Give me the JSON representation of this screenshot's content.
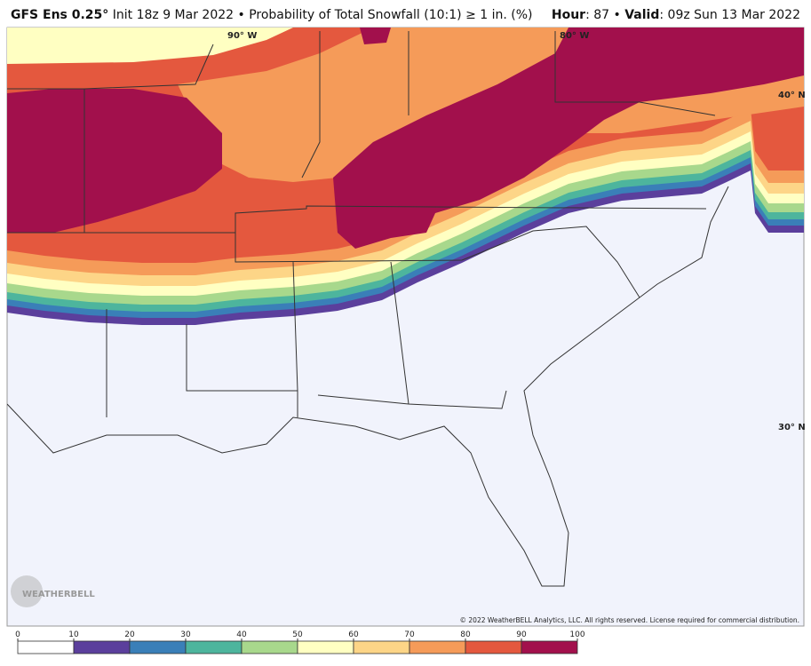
{
  "header": {
    "model": "GFS Ens 0.25°",
    "description": "Init 18z 9 Mar 2022 • Probability of Total Snowfall (10:1) ≥ 1 in. (%)",
    "hour_label": "Hour",
    "hour": ": 87",
    "separator": "•",
    "valid_label": "Valid",
    "valid": ": 09z Sun 13 Mar 2022"
  },
  "map": {
    "lon_labels": [
      "90° W",
      "80° W"
    ],
    "lat_labels": [
      "40° N",
      "30° N"
    ],
    "logo": "WEATHERBELL",
    "copyright": "© 2022 WeatherBELL Analytics, LLC. All rights reserved. License required for commercial distribution."
  },
  "colorbar": {
    "ticks": [
      0,
      10,
      20,
      30,
      40,
      50,
      60,
      70,
      80,
      90,
      100
    ],
    "colors": [
      "#ffffff",
      "#5b3f9c",
      "#3a7fb8",
      "#4db59d",
      "#a8d88c",
      "#ffffc2",
      "#fdd587",
      "#f59b59",
      "#e4583e",
      "#a2104c"
    ]
  }
}
